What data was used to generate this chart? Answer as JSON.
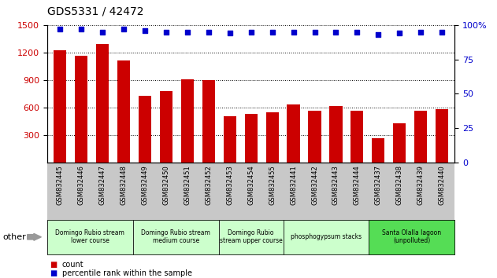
{
  "title": "GDS5331 / 42472",
  "samples": [
    "GSM832445",
    "GSM832446",
    "GSM832447",
    "GSM832448",
    "GSM832449",
    "GSM832450",
    "GSM832451",
    "GSM832452",
    "GSM832453",
    "GSM832454",
    "GSM832455",
    "GSM832441",
    "GSM832442",
    "GSM832443",
    "GSM832444",
    "GSM832437",
    "GSM832438",
    "GSM832439",
    "GSM832440"
  ],
  "counts": [
    1225,
    1165,
    1295,
    1110,
    730,
    780,
    910,
    900,
    510,
    530,
    545,
    635,
    570,
    615,
    570,
    270,
    430,
    565,
    585
  ],
  "percentiles": [
    97,
    97,
    95,
    97,
    96,
    95,
    95,
    95,
    94,
    95,
    95,
    95,
    95,
    95,
    95,
    93,
    94,
    95,
    95
  ],
  "bar_color": "#cc0000",
  "dot_color": "#0000cc",
  "ylim_left": [
    0,
    1500
  ],
  "ylim_right": [
    0,
    100
  ],
  "yticks_left": [
    300,
    600,
    900,
    1200,
    1500
  ],
  "yticks_right": [
    0,
    25,
    50,
    75,
    100
  ],
  "groups": [
    {
      "label": "Domingo Rubio stream\nlower course",
      "start": 0,
      "end": 3,
      "color": "#ccffcc"
    },
    {
      "label": "Domingo Rubio stream\nmedium course",
      "start": 4,
      "end": 7,
      "color": "#ccffcc"
    },
    {
      "label": "Domingo Rubio\nstream upper course",
      "start": 8,
      "end": 10,
      "color": "#ccffcc"
    },
    {
      "label": "phosphogypsum stacks",
      "start": 11,
      "end": 14,
      "color": "#ccffcc"
    },
    {
      "label": "Santa Olalla lagoon\n(unpolluted)",
      "start": 15,
      "end": 18,
      "color": "#55dd55"
    }
  ],
  "tick_area_color": "#c8c8c8",
  "background_color": "#ffffff",
  "legend_count_color": "#cc0000",
  "legend_pct_color": "#0000cc",
  "bar_width": 0.6
}
